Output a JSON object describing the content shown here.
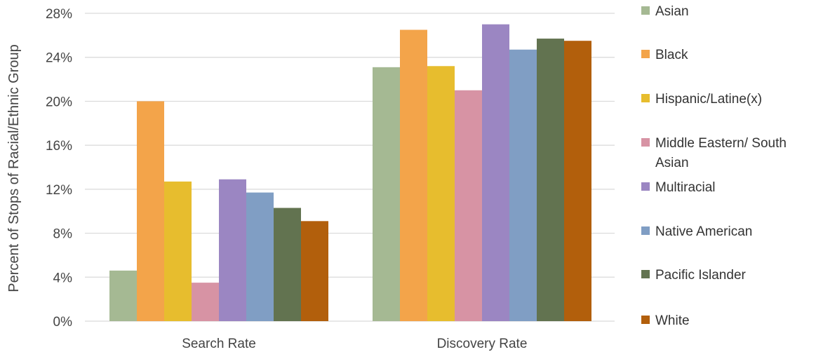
{
  "chart_data": {
    "type": "bar",
    "title": "",
    "xlabel": "",
    "ylabel": "Percent of Stops of Racial/Ethnic Group",
    "ylim": [
      0,
      28
    ],
    "yticks": [
      0,
      4,
      8,
      12,
      16,
      20,
      24,
      28
    ],
    "ytick_labels": [
      "0%",
      "4%",
      "8%",
      "12%",
      "16%",
      "20%",
      "24%",
      "28%"
    ],
    "grid": true,
    "legend_position": "right",
    "categories": [
      "Search Rate",
      "Discovery Rate"
    ],
    "series": [
      {
        "name": "Asian",
        "values": [
          4.6,
          23.1
        ],
        "color": "#a5b993"
      },
      {
        "name": "Black",
        "values": [
          20.0,
          26.5
        ],
        "color": "#f3a44a"
      },
      {
        "name": "Hispanic/Latine(x)",
        "values": [
          12.7,
          23.2
        ],
        "color": "#e7bd2e"
      },
      {
        "name": "Middle Eastern/ South Asian",
        "values": [
          3.5,
          21.0
        ],
        "color": "#d793a4"
      },
      {
        "name": "Multiracial",
        "values": [
          12.9,
          27.0
        ],
        "color": "#9b86c2"
      },
      {
        "name": "Native American",
        "values": [
          11.7,
          24.7
        ],
        "color": "#809ec4"
      },
      {
        "name": "Pacific Islander",
        "values": [
          10.3,
          25.7
        ],
        "color": "#627350"
      },
      {
        "name": "White",
        "values": [
          9.1,
          25.5
        ],
        "color": "#b25f0c"
      }
    ]
  },
  "colors": {
    "gridline": "#d9d9d9",
    "axis_text": "#444444",
    "legend_text": "#333333"
  }
}
